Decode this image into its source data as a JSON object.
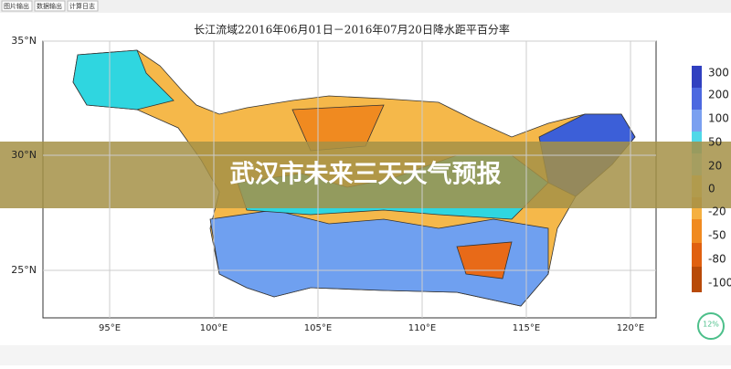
{
  "toolbar": {
    "buttons": [
      "图片输出",
      "数据输出",
      "计算日志"
    ]
  },
  "map": {
    "title": "长江流域22016年06月01日－2016年07月20日降水距平百分率",
    "lat_labels": [
      "35°N",
      "30°N",
      "25°N"
    ],
    "lon_labels": [
      "95°E",
      "100°E",
      "105°E",
      "110°E",
      "115°E",
      "120°E"
    ],
    "colorbar_labels": [
      "300",
      "200",
      "100",
      "50",
      "20",
      "0",
      "-20",
      "-50",
      "-80",
      "-100"
    ]
  },
  "banner": {
    "title": "武汉市未来三天天气预报"
  },
  "badge": {
    "text": "12%"
  }
}
